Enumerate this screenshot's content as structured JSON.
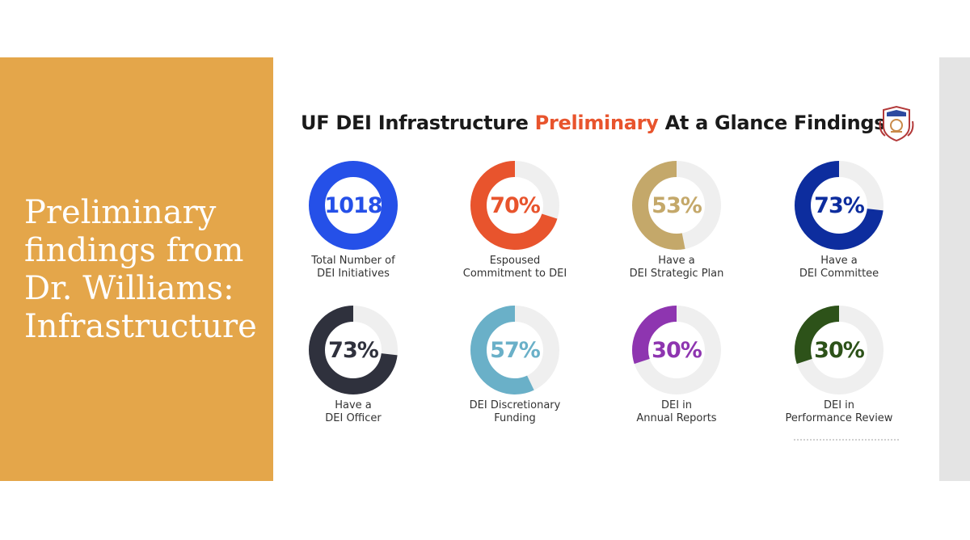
{
  "side_panel": {
    "title": "Preliminary\nfindings from\nDr. Williams:\nInfrastructure"
  },
  "slide": {
    "heading_part1": "UF DEI Infrastructure ",
    "heading_highlight": "Preliminary",
    "heading_part2": " At a Glance Findings",
    "highlight_color": "#e8542d",
    "logo_icon": "university-crest-icon"
  },
  "stats": [
    {
      "value": "1018",
      "percent": 100,
      "color": "#2550e8",
      "caption": "Total Number of\nDEI Initiatives"
    },
    {
      "value": "70%",
      "percent": 70,
      "color": "#e8542d",
      "caption": "Espoused\nCommitment to DEI"
    },
    {
      "value": "53%",
      "percent": 53,
      "color": "#c4a86a",
      "caption": "Have a\nDEI Strategic Plan"
    },
    {
      "value": "73%",
      "percent": 73,
      "color": "#0d2d9e",
      "caption": "Have a\nDEI Committee"
    },
    {
      "value": "73%",
      "percent": 73,
      "color": "#2f313d",
      "caption": "Have a\nDEI Officer"
    },
    {
      "value": "57%",
      "percent": 57,
      "color": "#6ab0c8",
      "caption": "DEI Discretionary\nFunding"
    },
    {
      "value": "30%",
      "percent": 30,
      "color": "#8e35b0",
      "caption": "DEI in\nAnnual Reports"
    },
    {
      "value": "30%",
      "percent": 30,
      "color": "#2d5219",
      "caption": "DEI in\nPerformance Review"
    }
  ],
  "ring_track_color": "#efefef"
}
